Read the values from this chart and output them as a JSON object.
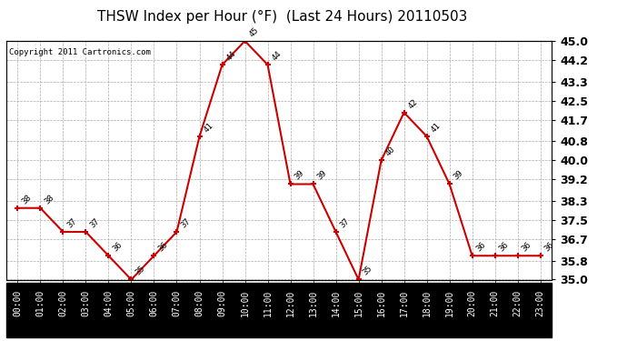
{
  "title": "THSW Index per Hour (°F)  (Last 24 Hours) 20110503",
  "copyright": "Copyright 2011 Cartronics.com",
  "hours": [
    "00:00",
    "01:00",
    "02:00",
    "03:00",
    "04:00",
    "05:00",
    "06:00",
    "07:00",
    "08:00",
    "09:00",
    "10:00",
    "11:00",
    "12:00",
    "13:00",
    "14:00",
    "15:00",
    "16:00",
    "17:00",
    "18:00",
    "19:00",
    "20:00",
    "21:00",
    "22:00",
    "23:00"
  ],
  "values": [
    38,
    38,
    37,
    37,
    36,
    35,
    36,
    37,
    41,
    44,
    45,
    44,
    39,
    39,
    37,
    35,
    40,
    42,
    41,
    39,
    36,
    36,
    36,
    36
  ],
  "line_color": "#cc0000",
  "marker_color": "#cc0000",
  "plot_bg_color": "#ffffff",
  "fig_bg_color": "#ffffff",
  "xticklabel_bg": "#000000",
  "xticklabel_fg": "#ffffff",
  "grid_color": "#aaaaaa",
  "ytick_label_color": "#000000",
  "ylim_min": 35.0,
  "ylim_max": 45.0,
  "yticks": [
    35.0,
    35.8,
    36.7,
    37.5,
    38.3,
    39.2,
    40.0,
    40.8,
    41.7,
    42.5,
    43.3,
    44.2,
    45.0
  ],
  "title_fontsize": 11,
  "annotation_fontsize": 6.5,
  "copyright_fontsize": 6.5,
  "ytick_fontsize": 9,
  "xtick_fontsize": 7
}
